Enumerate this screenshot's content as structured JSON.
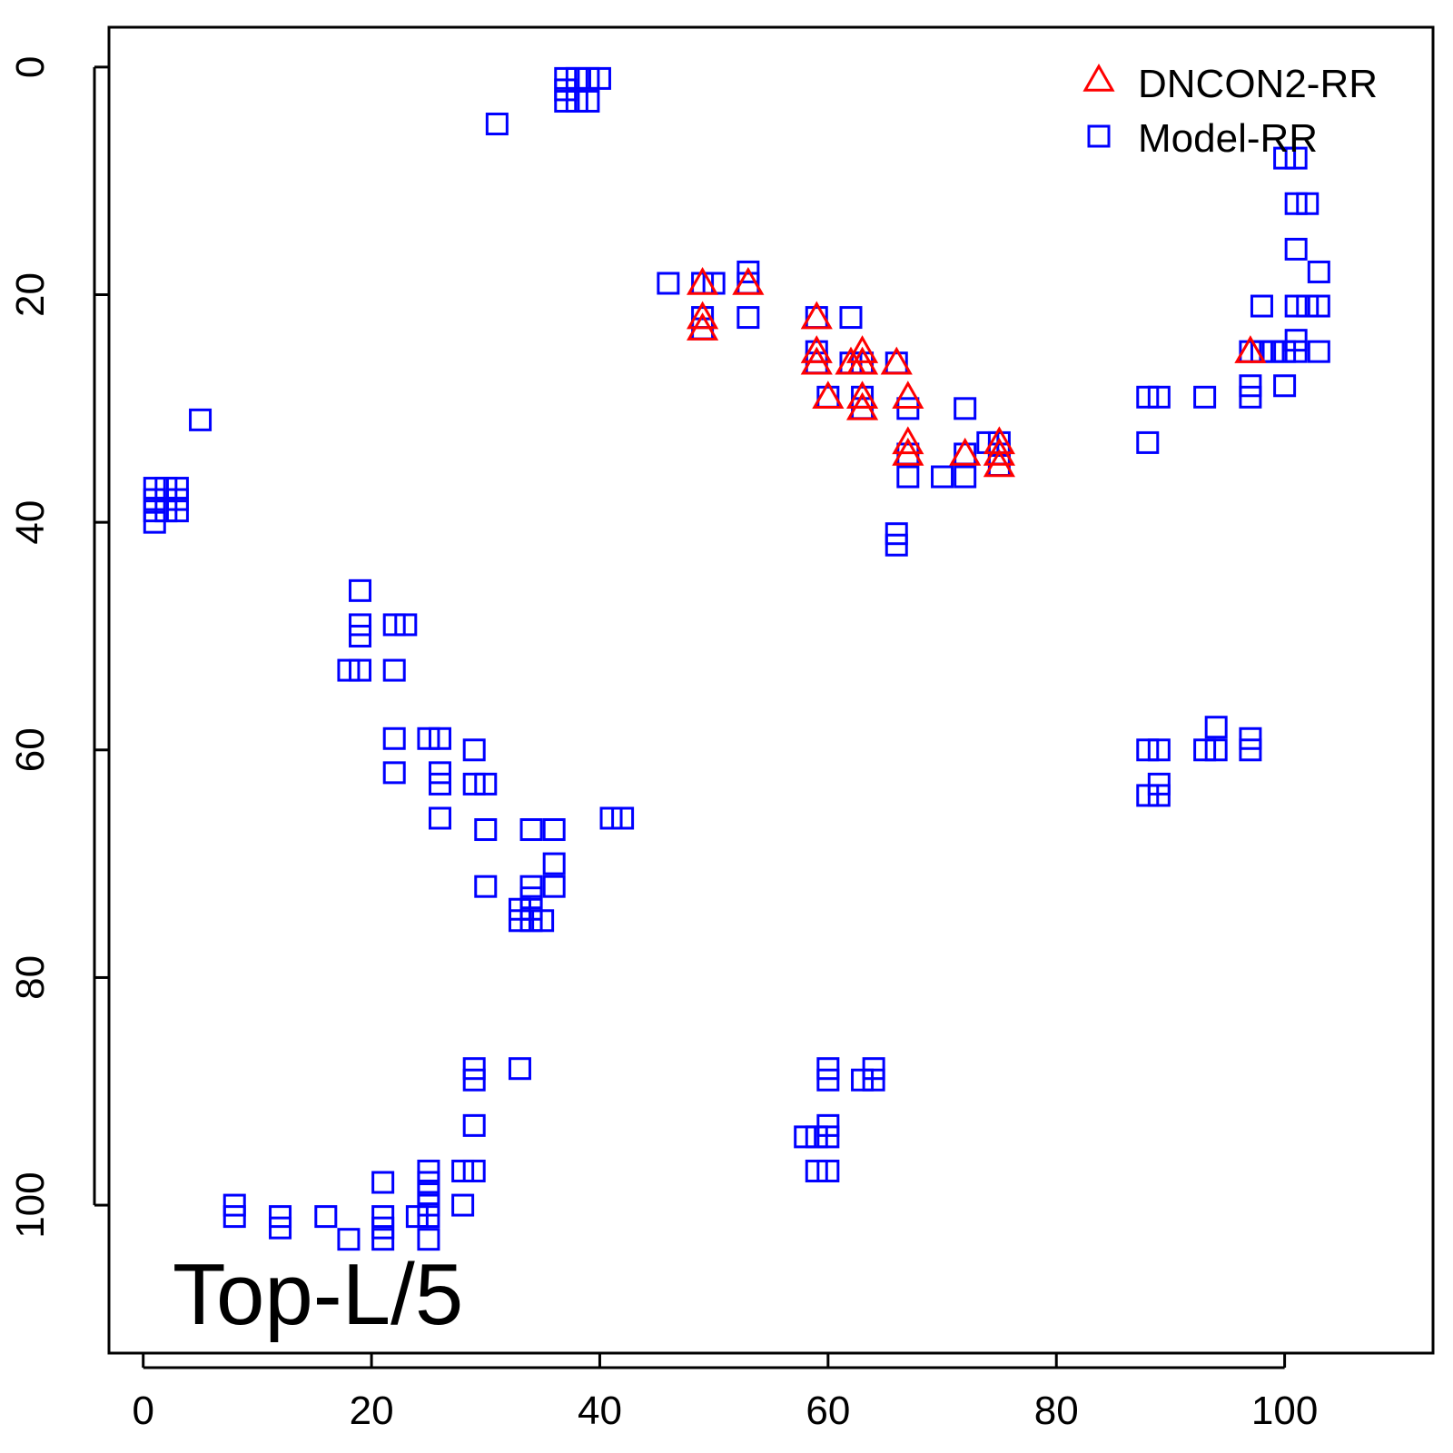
{
  "chart_data": {
    "type": "scatter",
    "title": "",
    "xlabel": "",
    "ylabel": "",
    "xlim": [
      -3,
      113
    ],
    "ylim": [
      -3.5,
      113
    ],
    "y_reversed": true,
    "grid": false,
    "legend_position": "top-right",
    "x_ticks": [
      "0",
      "20",
      "40",
      "60",
      "80",
      "100"
    ],
    "y_ticks": [
      "0",
      "20",
      "40",
      "60",
      "80",
      "100"
    ],
    "annotation": "Top-L/5",
    "series": [
      {
        "name": "DNCON2-RR",
        "marker": "triangle",
        "color": "#ff0000",
        "points": [
          [
            49,
            19
          ],
          [
            49,
            22
          ],
          [
            49,
            23
          ],
          [
            53,
            19
          ],
          [
            59,
            22
          ],
          [
            59,
            25
          ],
          [
            59,
            26
          ],
          [
            60,
            29
          ],
          [
            62,
            26
          ],
          [
            63,
            25
          ],
          [
            63,
            26
          ],
          [
            63,
            29
          ],
          [
            63,
            30
          ],
          [
            66,
            26
          ],
          [
            67,
            29
          ],
          [
            67,
            33
          ],
          [
            67,
            34
          ],
          [
            72,
            34
          ],
          [
            75,
            33
          ],
          [
            75,
            34
          ],
          [
            75,
            35
          ],
          [
            97,
            25
          ]
        ]
      },
      {
        "name": "Model-RR",
        "marker": "square",
        "color": "#0000ff",
        "points": [
          [
            37,
            1
          ],
          [
            37,
            2
          ],
          [
            37,
            3
          ],
          [
            38,
            1
          ],
          [
            38,
            3
          ],
          [
            39,
            1
          ],
          [
            39,
            3
          ],
          [
            40,
            1
          ],
          [
            31,
            5
          ],
          [
            5,
            31
          ],
          [
            1,
            37
          ],
          [
            1,
            38
          ],
          [
            1,
            39
          ],
          [
            1,
            40
          ],
          [
            2,
            37
          ],
          [
            2,
            39
          ],
          [
            3,
            37
          ],
          [
            3,
            38
          ],
          [
            3,
            39
          ],
          [
            19,
            46
          ],
          [
            19,
            49
          ],
          [
            19,
            50
          ],
          [
            19,
            53
          ],
          [
            18,
            53
          ],
          [
            22,
            49
          ],
          [
            23,
            49
          ],
          [
            22,
            53
          ],
          [
            22,
            59
          ],
          [
            22,
            62
          ],
          [
            25,
            59
          ],
          [
            26,
            59
          ],
          [
            26,
            62
          ],
          [
            26,
            63
          ],
          [
            26,
            66
          ],
          [
            29,
            60
          ],
          [
            29,
            63
          ],
          [
            30,
            63
          ],
          [
            30,
            67
          ],
          [
            30,
            72
          ],
          [
            34,
            67
          ],
          [
            36,
            67
          ],
          [
            36,
            70
          ],
          [
            36,
            72
          ],
          [
            34,
            72
          ],
          [
            34,
            73
          ],
          [
            34,
            74
          ],
          [
            33,
            74
          ],
          [
            33,
            75
          ],
          [
            34,
            75
          ],
          [
            35,
            75
          ],
          [
            41,
            66
          ],
          [
            42,
            66
          ],
          [
            46,
            19
          ],
          [
            49,
            19
          ],
          [
            50,
            19
          ],
          [
            49,
            22
          ],
          [
            49,
            23
          ],
          [
            53,
            18
          ],
          [
            53,
            19
          ],
          [
            53,
            22
          ],
          [
            59,
            22
          ],
          [
            62,
            22
          ],
          [
            59,
            25
          ],
          [
            59,
            26
          ],
          [
            62,
            26
          ],
          [
            63,
            26
          ],
          [
            66,
            26
          ],
          [
            60,
            29
          ],
          [
            63,
            29
          ],
          [
            63,
            30
          ],
          [
            67,
            30
          ],
          [
            72,
            30
          ],
          [
            67,
            34
          ],
          [
            67,
            36
          ],
          [
            70,
            36
          ],
          [
            72,
            36
          ],
          [
            72,
            34
          ],
          [
            74,
            33
          ],
          [
            75,
            33
          ],
          [
            75,
            34
          ],
          [
            75,
            35
          ],
          [
            66,
            41
          ],
          [
            66,
            42
          ],
          [
            88,
            29
          ],
          [
            89,
            29
          ],
          [
            88,
            33
          ],
          [
            93,
            29
          ],
          [
            97,
            28
          ],
          [
            97,
            29
          ],
          [
            100,
            28
          ],
          [
            97,
            25
          ],
          [
            98,
            25
          ],
          [
            99,
            25
          ],
          [
            100,
            25
          ],
          [
            101,
            25
          ],
          [
            101,
            24
          ],
          [
            103,
            25
          ],
          [
            98,
            21
          ],
          [
            101,
            21
          ],
          [
            102,
            21
          ],
          [
            103,
            21
          ],
          [
            103,
            18
          ],
          [
            101,
            16
          ],
          [
            101,
            12
          ],
          [
            102,
            12
          ],
          [
            100,
            8
          ],
          [
            101,
            8
          ],
          [
            88,
            60
          ],
          [
            89,
            60
          ],
          [
            88,
            64
          ],
          [
            89,
            63
          ],
          [
            89,
            64
          ],
          [
            93,
            60
          ],
          [
            94,
            58
          ],
          [
            94,
            60
          ],
          [
            97,
            59
          ],
          [
            97,
            60
          ],
          [
            29,
            88
          ],
          [
            29,
            89
          ],
          [
            33,
            88
          ],
          [
            29,
            93
          ],
          [
            28,
            97
          ],
          [
            29,
            97
          ],
          [
            28,
            100
          ],
          [
            8,
            100
          ],
          [
            8,
            101
          ],
          [
            12,
            101
          ],
          [
            12,
            102
          ],
          [
            16,
            101
          ],
          [
            18,
            103
          ],
          [
            21,
            98
          ],
          [
            21,
            101
          ],
          [
            21,
            102
          ],
          [
            21,
            103
          ],
          [
            24,
            101
          ],
          [
            25,
            97
          ],
          [
            25,
            98
          ],
          [
            25,
            99
          ],
          [
            25,
            100
          ],
          [
            25,
            101
          ],
          [
            25,
            103
          ],
          [
            60,
            88
          ],
          [
            60,
            89
          ],
          [
            63,
            89
          ],
          [
            64,
            88
          ],
          [
            64,
            89
          ],
          [
            60,
            93
          ],
          [
            60,
            94
          ],
          [
            58,
            94
          ],
          [
            59,
            94
          ],
          [
            59,
            97
          ],
          [
            60,
            97
          ]
        ]
      }
    ]
  }
}
